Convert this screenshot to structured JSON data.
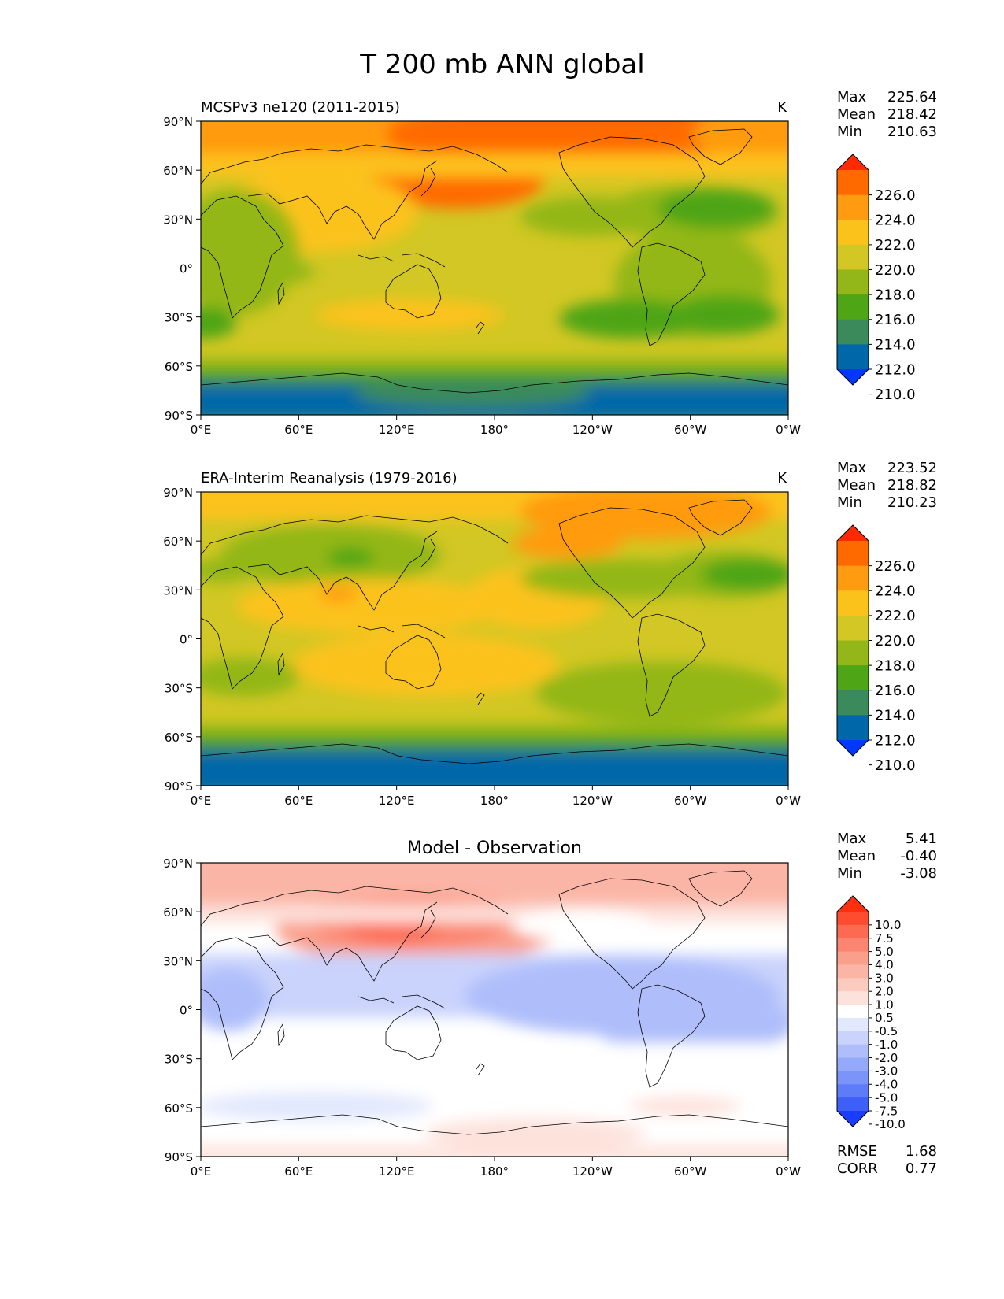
{
  "title": "T 200 mb ANN global",
  "axes": {
    "lat_ticks": [
      "90°N",
      "60°N",
      "30°N",
      "0°",
      "30°S",
      "60°S",
      "90°S"
    ],
    "lon_ticks": [
      "0°E",
      "60°E",
      "120°E",
      "180°",
      "120°W",
      "60°W",
      "0°W"
    ]
  },
  "panels": [
    {
      "id": "model",
      "left_title": "MCSPv3 ne120 (2011-2015)",
      "center_title": "",
      "units": "K",
      "stats": [
        {
          "label": "Max",
          "value": "225.64"
        },
        {
          "label": "Mean",
          "value": "218.42"
        },
        {
          "label": "Min",
          "value": "210.63"
        }
      ],
      "colorbar": {
        "labels": [
          "226.0",
          "224.0",
          "222.0",
          "220.0",
          "218.0",
          "216.0",
          "214.0",
          "212.0",
          "210.0"
        ],
        "colors": [
          "#ff2a00",
          "#ff6a00",
          "#ff9b10",
          "#fcc21c",
          "#d2c724",
          "#93b719",
          "#4ea516",
          "#3a8a5c",
          "#0068a8",
          "#0038ff"
        ]
      },
      "bottom_stats": []
    },
    {
      "id": "obs",
      "left_title": "ERA-Interim Reanalysis (1979-2016)",
      "center_title": "",
      "units": "K",
      "stats": [
        {
          "label": "Max",
          "value": "223.52"
        },
        {
          "label": "Mean",
          "value": "218.82"
        },
        {
          "label": "Min",
          "value": "210.23"
        }
      ],
      "colorbar": {
        "labels": [
          "226.0",
          "224.0",
          "222.0",
          "220.0",
          "218.0",
          "216.0",
          "214.0",
          "212.0",
          "210.0"
        ],
        "colors": [
          "#ff2a00",
          "#ff6a00",
          "#ff9b10",
          "#fcc21c",
          "#d2c724",
          "#93b719",
          "#4ea516",
          "#3a8a5c",
          "#0068a8",
          "#0038ff"
        ]
      },
      "bottom_stats": []
    },
    {
      "id": "diff",
      "left_title": "",
      "center_title": "Model - Observation",
      "units": "",
      "stats": [
        {
          "label": "Max",
          "value": "5.41"
        },
        {
          "label": "Mean",
          "value": "-0.40"
        },
        {
          "label": "Min",
          "value": "-3.08"
        }
      ],
      "colorbar": {
        "labels": [
          "10.0",
          "7.5",
          "5.0",
          "4.0",
          "3.0",
          "2.0",
          "1.0",
          "0.5",
          "-0.5",
          "-1.0",
          "-2.0",
          "-3.0",
          "-4.0",
          "-5.0",
          "-7.5",
          "-10.0"
        ],
        "colors": [
          "#ff3010",
          "#ff4b30",
          "#fd6a52",
          "#fb8570",
          "#fa9f8c",
          "#fbb5a6",
          "#fccbc0",
          "#fde2dc",
          "#ffffff",
          "#e2e8fd",
          "#c9d3fc",
          "#afbefb",
          "#95a9fa",
          "#7b94f9",
          "#5f7cf8",
          "#3f60f8",
          "#1a3cff"
        ]
      },
      "bottom_stats": [
        {
          "label": "RMSE",
          "value": "1.68"
        },
        {
          "label": "CORR",
          "value": "0.77"
        }
      ]
    }
  ],
  "colors": {
    "land_outline": "#000000",
    "frame": "#000000"
  }
}
